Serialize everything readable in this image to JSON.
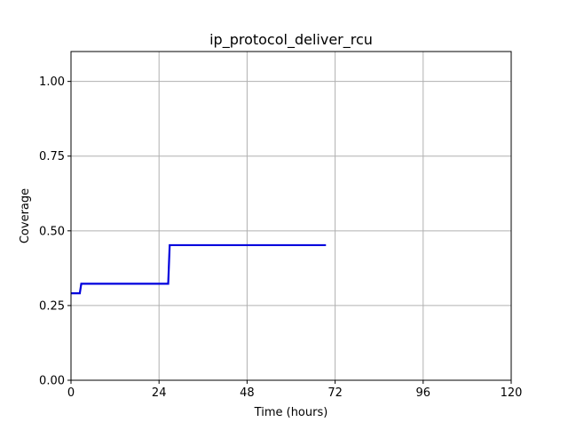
{
  "chart_data": {
    "type": "line",
    "title": "ip_protocol_deliver_rcu",
    "xlabel": "Time (hours)",
    "ylabel": "Coverage",
    "xlim": [
      0,
      120
    ],
    "ylim": [
      0,
      1.1
    ],
    "xticks": [
      0,
      24,
      48,
      72,
      96,
      120
    ],
    "xtick_labels": [
      "0",
      "24",
      "48",
      "72",
      "96",
      "120"
    ],
    "yticks": [
      0,
      0.25,
      0.5,
      0.75,
      1.0
    ],
    "ytick_labels": [
      "0.00",
      "0.25",
      "0.50",
      "0.75",
      "1.00"
    ],
    "grid": true,
    "step": true,
    "series": [
      {
        "color": "#0000dd",
        "x": [
          0,
          2.4,
          2.8,
          26.5,
          26.9,
          69.5
        ],
        "y": [
          0.291,
          0.291,
          0.323,
          0.323,
          0.452,
          0.452
        ]
      }
    ]
  }
}
